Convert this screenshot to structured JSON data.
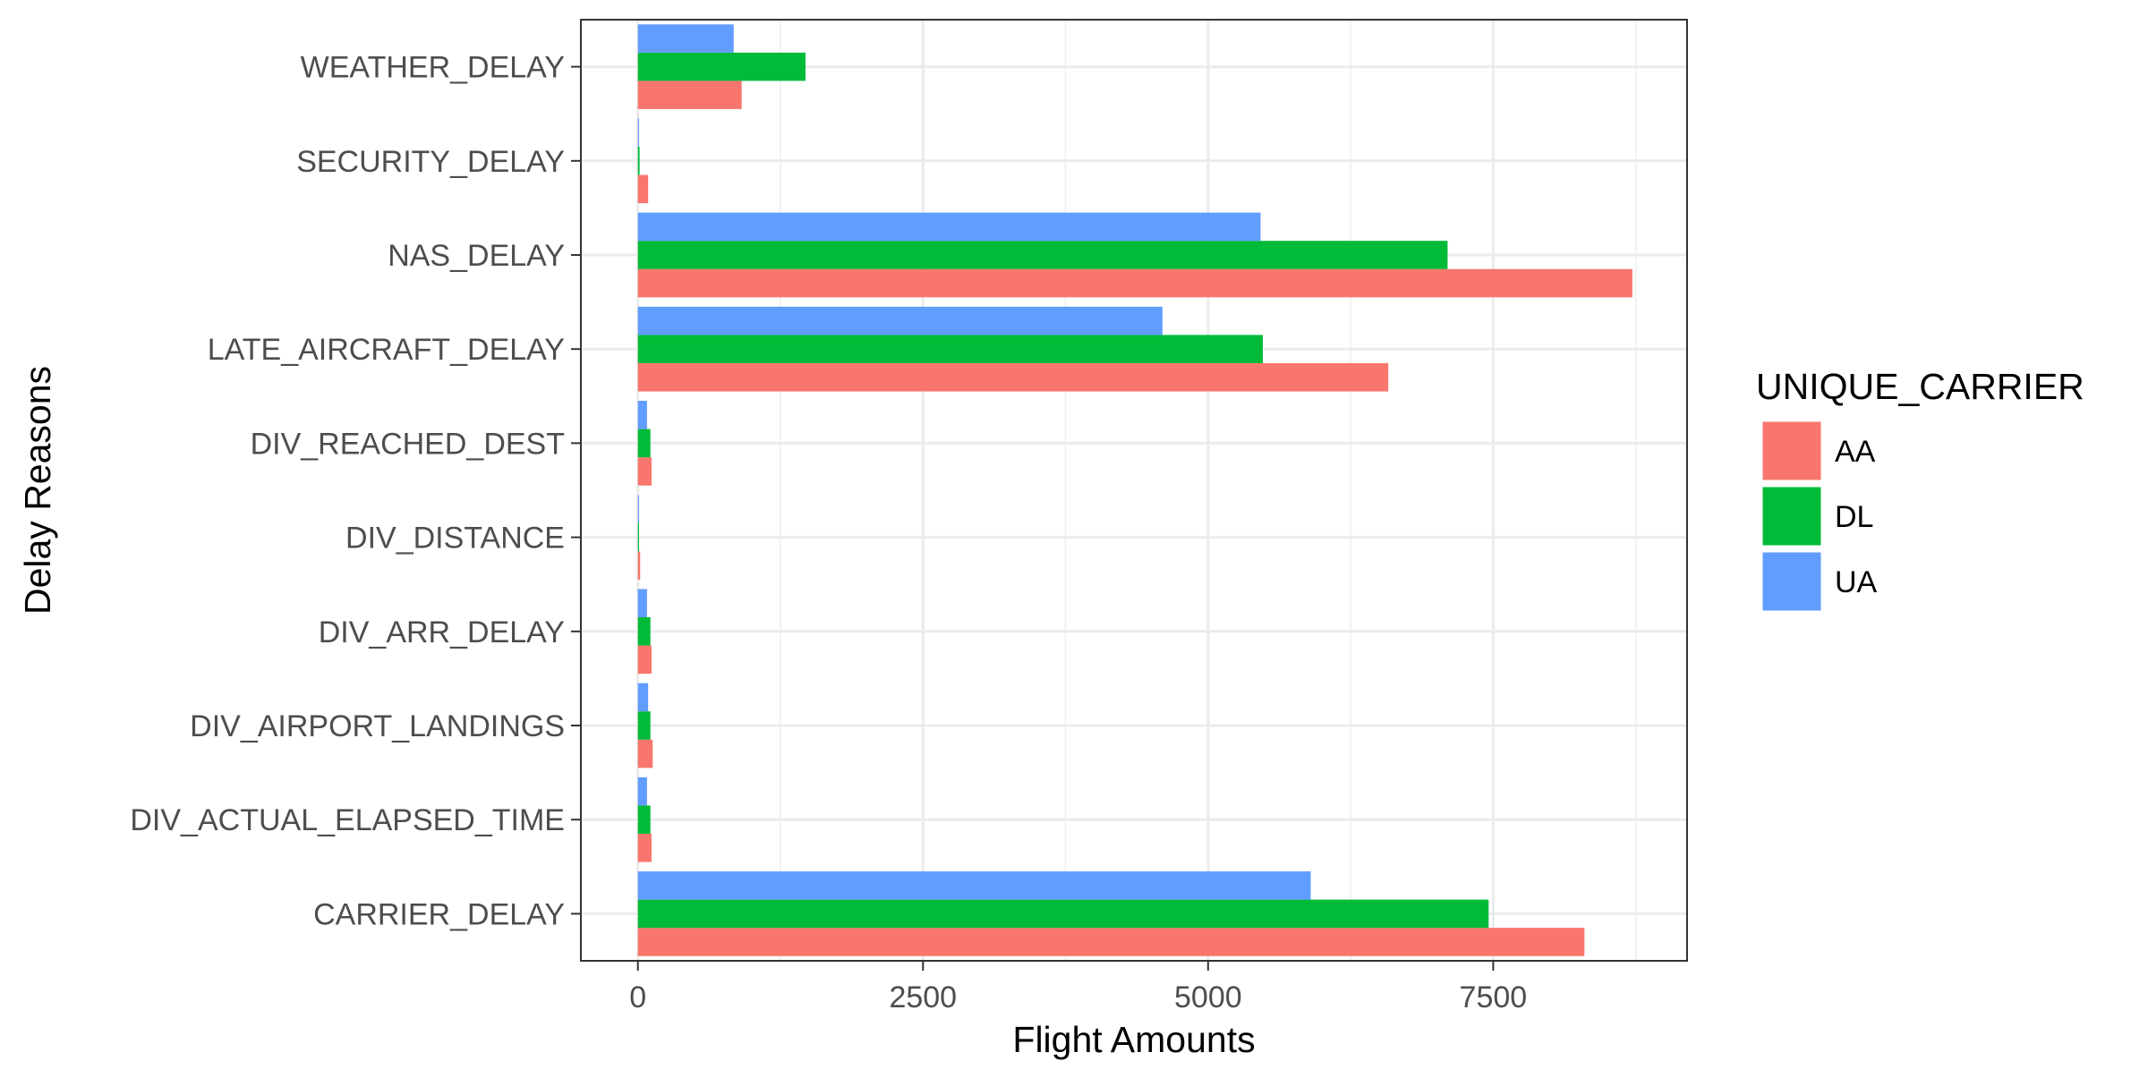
{
  "chart_data": {
    "type": "bar",
    "orientation": "horizontal",
    "title": "",
    "xlabel": "Flight Amounts",
    "ylabel": "Delay Reasons",
    "xlim": [
      -500,
      9200
    ],
    "x_ticks": [
      0,
      2500,
      5000,
      7500
    ],
    "x_tick_labels": [
      "0",
      "2500",
      "5000",
      "7500"
    ],
    "grid": true,
    "legend": {
      "title": "UNIQUE_CARRIER",
      "position": "right"
    },
    "categories": [
      "CARRIER_DELAY",
      "DIV_ACTUAL_ELAPSED_TIME",
      "DIV_AIRPORT_LANDINGS",
      "DIV_ARR_DELAY",
      "DIV_DISTANCE",
      "DIV_REACHED_DEST",
      "LATE_AIRCRAFT_DELAY",
      "NAS_DELAY",
      "SECURITY_DELAY",
      "WEATHER_DELAY"
    ],
    "series": [
      {
        "name": "AA",
        "color": "#F8766D",
        "values": [
          8300,
          120,
          130,
          120,
          20,
          120,
          6580,
          8720,
          90,
          910
        ]
      },
      {
        "name": "DL",
        "color": "#00BA38",
        "values": [
          7460,
          110,
          110,
          110,
          10,
          110,
          5480,
          7100,
          15,
          1470
        ]
      },
      {
        "name": "UA",
        "color": "#619CFF",
        "values": [
          5900,
          80,
          90,
          80,
          10,
          80,
          4600,
          5460,
          10,
          840
        ]
      }
    ]
  }
}
